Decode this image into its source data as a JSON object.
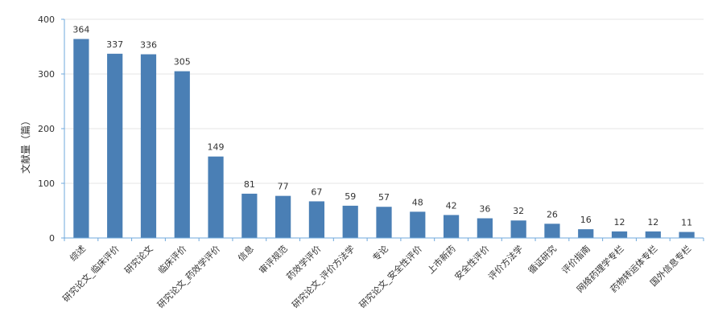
{
  "chart_data": {
    "type": "bar",
    "ylabel": "文献量（篇）",
    "xlabel": "",
    "ylim": [
      0,
      400
    ],
    "yticks": [
      0,
      100,
      200,
      300,
      400
    ],
    "grid": true,
    "categories": [
      "综述",
      "研究论文_临床评价",
      "研究论文",
      "临床评价",
      "研究论文_药效学评价",
      "信息",
      "审评规范",
      "药效学评价",
      "研究论文_评价方法学",
      "专论",
      "研究论文_安全性评价",
      "上市新药",
      "安全性评价",
      "评价方法学",
      "循证研究",
      "评价指南",
      "网络药理学专栏",
      "药物转运体专栏",
      "国外信息专栏"
    ],
    "values": [
      364,
      337,
      336,
      305,
      149,
      81,
      77,
      67,
      59,
      57,
      48,
      42,
      36,
      32,
      26,
      16,
      12,
      12,
      11
    ],
    "bar_color": "#4a7fb5",
    "axis_color": "#6fa8dc",
    "grid_color": "#e6e6e6"
  }
}
